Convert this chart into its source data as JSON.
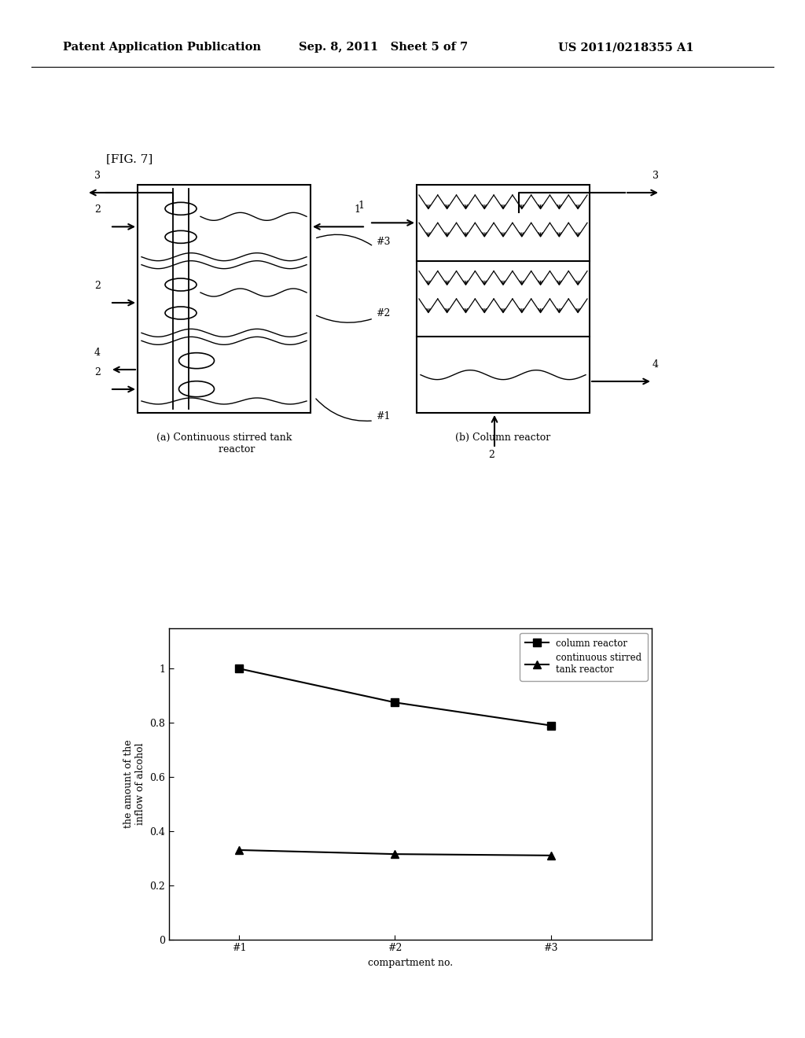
{
  "header_left": "Patent Application Publication",
  "header_mid": "Sep. 8, 2011   Sheet 5 of 7",
  "header_right": "US 2011/0218355 A1",
  "fig_label": "[FIG. 7]",
  "caption_a": "(a) Continuous stirred tank\n        reactor",
  "caption_b": "(b) Column reactor",
  "chart_xlabel": "compartment no.",
  "chart_ylabel": "the amount of the\ninflow of alcohol",
  "chart_xticks": [
    "#1",
    "#2",
    "#3"
  ],
  "chart_yticks": [
    0,
    0.2,
    0.4,
    0.6,
    0.8,
    1
  ],
  "series_column": [
    1.0,
    0.875,
    0.79
  ],
  "series_stirred": [
    0.33,
    0.315,
    0.31
  ],
  "legend_col": "column reactor",
  "legend_stir": "continuous stirred\ntank reactor",
  "bg_color": "#ffffff",
  "font_size_header": 10.5,
  "font_size_label": 9,
  "font_size_fig": 10
}
